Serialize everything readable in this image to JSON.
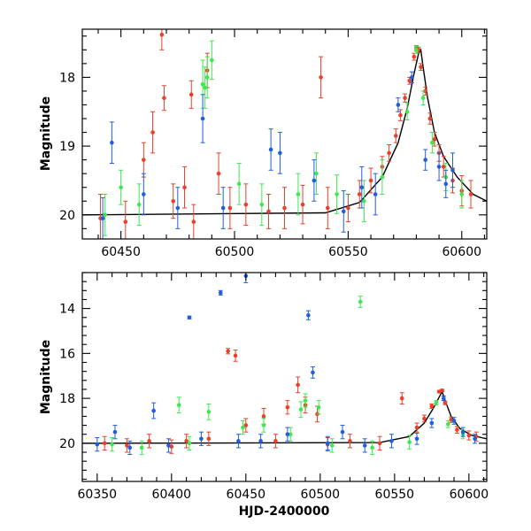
{
  "chart_data": [
    {
      "type": "scatter",
      "title": "",
      "ylabel": "Magnitude",
      "xlabel": "",
      "xlim": [
        60433,
        60611
      ],
      "ylim": [
        20.35,
        17.3
      ],
      "y_inverted": true,
      "xticks": [
        60450,
        60500,
        60550,
        60600
      ],
      "xtick_labels": [
        "60450",
        "60500",
        "60550",
        "60600"
      ],
      "yticks": [
        18,
        19,
        20
      ],
      "ytick_labels": [
        "18",
        "19",
        "20"
      ],
      "grid": false,
      "legend": "none",
      "series": [
        {
          "color": "#e8402a",
          "points": [
            [
              60441,
              20.05
            ],
            [
              60452,
              20.1
            ],
            [
              60460,
              19.2
            ],
            [
              60464,
              18.8
            ],
            [
              60468,
              17.38
            ],
            [
              60469,
              18.3
            ],
            [
              60473,
              19.8
            ],
            [
              60478,
              19.6
            ],
            [
              60481,
              18.25
            ],
            [
              60482,
              20.1
            ],
            [
              60488,
              17.9
            ],
            [
              60493,
              19.4
            ],
            [
              60498,
              19.9
            ],
            [
              60505,
              19.85
            ],
            [
              60515,
              19.95
            ],
            [
              60522,
              19.9
            ],
            [
              60530,
              19.85
            ],
            [
              60538,
              18.0
            ],
            [
              60541,
              19.9
            ],
            [
              60550,
              19.9
            ],
            [
              60555,
              19.7
            ],
            [
              60560,
              19.5
            ],
            [
              60565,
              19.3
            ],
            [
              60568,
              19.1
            ],
            [
              60571,
              18.85
            ],
            [
              60573,
              18.55
            ],
            [
              60575,
              18.3
            ],
            [
              60577,
              18.05
            ],
            [
              60579,
              17.7
            ],
            [
              60580,
              17.58
            ],
            [
              60581,
              17.6
            ],
            [
              60582,
              17.85
            ],
            [
              60584,
              18.2
            ],
            [
              60586,
              18.6
            ],
            [
              60588,
              18.9
            ],
            [
              60590,
              19.1
            ],
            [
              60592,
              19.3
            ],
            [
              60596,
              19.5
            ],
            [
              60600,
              19.65
            ],
            [
              60604,
              19.7
            ]
          ],
          "errors": [
            0.35,
            0.3,
            0.25,
            0.3,
            0.22,
            0.18,
            0.25,
            0.3,
            0.2,
            0.25,
            0.25,
            0.3,
            0.3,
            0.3,
            0.25,
            0.3,
            0.28,
            0.3,
            0.3,
            0.2,
            0.2,
            0.18,
            0.15,
            0.12,
            0.1,
            0.08,
            0.06,
            0.05,
            0.05,
            0.04,
            0.04,
            0.05,
            0.06,
            0.08,
            0.1,
            0.12,
            0.15,
            0.18,
            0.22,
            0.2
          ]
        },
        {
          "color": "#3ee84e",
          "points": [
            [
              60443,
              20.0
            ],
            [
              60450,
              19.6
            ],
            [
              60458,
              19.85
            ],
            [
              60486,
              18.1
            ],
            [
              60487,
              18.15
            ],
            [
              60488,
              18.0
            ],
            [
              60490,
              17.75
            ],
            [
              60502,
              19.55
            ],
            [
              60512,
              19.85
            ],
            [
              60528,
              19.7
            ],
            [
              60536,
              19.4
            ],
            [
              60545,
              19.7
            ],
            [
              60557,
              19.8
            ],
            [
              60565,
              19.45
            ],
            [
              60576,
              18.5
            ],
            [
              60580,
              17.6
            ],
            [
              60583,
              18.3
            ],
            [
              60587,
              18.95
            ],
            [
              60593,
              19.45
            ],
            [
              60600,
              19.7
            ]
          ],
          "errors": [
            0.3,
            0.25,
            0.3,
            0.35,
            0.3,
            0.3,
            0.28,
            0.3,
            0.3,
            0.3,
            0.3,
            0.28,
            0.3,
            0.25,
            0.12,
            0.05,
            0.1,
            0.15,
            0.2,
            0.2
          ]
        },
        {
          "color": "#1f5ee0",
          "points": [
            [
              60442,
              20.05
            ],
            [
              60446,
              18.95
            ],
            [
              60460,
              19.7
            ],
            [
              60475,
              19.9
            ],
            [
              60486,
              18.6
            ],
            [
              60495,
              19.9
            ],
            [
              60516,
              19.05
            ],
            [
              60520,
              19.1
            ],
            [
              60535,
              19.5
            ],
            [
              60548,
              19.95
            ],
            [
              60556,
              19.6
            ],
            [
              60562,
              19.7
            ],
            [
              60572,
              18.4
            ],
            [
              60578,
              18.0
            ],
            [
              60584,
              19.2
            ],
            [
              60590,
              19.3
            ],
            [
              60593,
              19.55
            ],
            [
              60596,
              19.35
            ]
          ],
          "errors": [
            0.3,
            0.3,
            0.3,
            0.3,
            0.35,
            0.3,
            0.3,
            0.3,
            0.3,
            0.3,
            0.3,
            0.3,
            0.1,
            0.08,
            0.15,
            0.2,
            0.2,
            0.25
          ]
        }
      ],
      "model_curve": [
        [
          60433,
          20.0
        ],
        [
          60540,
          19.97
        ],
        [
          60555,
          19.82
        ],
        [
          60565,
          19.45
        ],
        [
          60572,
          18.95
        ],
        [
          60576,
          18.45
        ],
        [
          60579,
          17.95
        ],
        [
          60581,
          17.65
        ],
        [
          60582,
          17.6
        ],
        [
          60583,
          17.85
        ],
        [
          60585,
          18.3
        ],
        [
          60588,
          18.8
        ],
        [
          60592,
          19.15
        ],
        [
          60598,
          19.45
        ],
        [
          60605,
          19.7
        ],
        [
          60611,
          19.8
        ]
      ]
    },
    {
      "type": "scatter",
      "title": "",
      "ylabel": "Magnitude",
      "xlabel": "HJD-2400000",
      "xlim": [
        60340,
        60612
      ],
      "ylim": [
        21.7,
        12.4
      ],
      "y_inverted": true,
      "xticks": [
        60350,
        60400,
        60450,
        60500,
        60550,
        60600
      ],
      "xtick_labels": [
        "60350",
        "60400",
        "60450",
        "60500",
        "60550",
        "60600"
      ],
      "yticks": [
        14,
        16,
        18,
        20
      ],
      "ytick_labels": [
        "14",
        "16",
        "18",
        "20"
      ],
      "grid": false,
      "legend": "none",
      "series": [
        {
          "color": "#e8402a",
          "points": [
            [
              60355,
              20.0
            ],
            [
              60370,
              20.1
            ],
            [
              60385,
              19.9
            ],
            [
              60400,
              20.15
            ],
            [
              60410,
              19.9
            ],
            [
              60425,
              19.8
            ],
            [
              60438,
              15.9
            ],
            [
              60443,
              16.1
            ],
            [
              60450,
              19.2
            ],
            [
              60462,
              18.8
            ],
            [
              60470,
              19.9
            ],
            [
              60478,
              18.4
            ],
            [
              60485,
              17.4
            ],
            [
              60490,
              18.3
            ],
            [
              60498,
              18.7
            ],
            [
              60505,
              20.05
            ],
            [
              60520,
              19.9
            ],
            [
              60540,
              20.0
            ],
            [
              60555,
              18.0
            ],
            [
              60565,
              19.3
            ],
            [
              60570,
              18.9
            ],
            [
              60575,
              18.35
            ],
            [
              60580,
              17.7
            ],
            [
              60582,
              17.65
            ],
            [
              60584,
              18.2
            ],
            [
              60588,
              18.95
            ],
            [
              60592,
              19.4
            ],
            [
              60600,
              19.65
            ],
            [
              60605,
              19.7
            ]
          ],
          "errors": [
            0.3,
            0.3,
            0.3,
            0.3,
            0.3,
            0.3,
            0.12,
            0.25,
            0.3,
            0.35,
            0.3,
            0.3,
            0.35,
            0.35,
            0.35,
            0.3,
            0.3,
            0.3,
            0.25,
            0.2,
            0.15,
            0.1,
            0.05,
            0.05,
            0.08,
            0.12,
            0.15,
            0.2,
            0.2
          ]
        },
        {
          "color": "#3ee84e",
          "points": [
            [
              60360,
              20.05
            ],
            [
              60380,
              20.2
            ],
            [
              60405,
              18.3
            ],
            [
              60412,
              20.0
            ],
            [
              60425,
              18.6
            ],
            [
              60448,
              19.3
            ],
            [
              60462,
              19.2
            ],
            [
              60480,
              19.6
            ],
            [
              60487,
              18.5
            ],
            [
              60490,
              18.1
            ],
            [
              60499,
              18.4
            ],
            [
              60508,
              20.1
            ],
            [
              60527,
              13.7
            ],
            [
              60535,
              20.2
            ],
            [
              60560,
              19.95
            ],
            [
              60578,
              18.2
            ],
            [
              60586,
              19.15
            ],
            [
              60596,
              19.6
            ]
          ],
          "errors": [
            0.3,
            0.3,
            0.35,
            0.3,
            0.35,
            0.3,
            0.3,
            0.3,
            0.35,
            0.3,
            0.3,
            0.3,
            0.25,
            0.3,
            0.3,
            0.1,
            0.15,
            0.2
          ]
        },
        {
          "color": "#1f5ee0",
          "points": [
            [
              60350,
              20.05
            ],
            [
              60362,
              19.5
            ],
            [
              60372,
              20.2
            ],
            [
              60388,
              18.55
            ],
            [
              60398,
              20.1
            ],
            [
              60412,
              14.4
            ],
            [
              60420,
              19.8
            ],
            [
              60433,
              13.3
            ],
            [
              60445,
              19.9
            ],
            [
              60450,
              12.55
            ],
            [
              60460,
              19.9
            ],
            [
              60478,
              19.6
            ],
            [
              60492,
              14.3
            ],
            [
              60495,
              16.85
            ],
            [
              60505,
              20.0
            ],
            [
              60515,
              19.5
            ],
            [
              60530,
              20.1
            ],
            [
              60548,
              19.9
            ],
            [
              60565,
              19.8
            ],
            [
              60575,
              19.1
            ],
            [
              60583,
              18.0
            ],
            [
              60590,
              19.0
            ],
            [
              60596,
              19.5
            ],
            [
              60604,
              19.8
            ]
          ],
          "errors": [
            0.3,
            0.3,
            0.3,
            0.35,
            0.3,
            0.06,
            0.3,
            0.1,
            0.3,
            0.3,
            0.3,
            0.3,
            0.2,
            0.25,
            0.3,
            0.3,
            0.3,
            0.3,
            0.25,
            0.2,
            0.1,
            0.15,
            0.2,
            0.2
          ]
        }
      ],
      "model_curve": [
        [
          60340,
          20.0
        ],
        [
          60540,
          19.97
        ],
        [
          60560,
          19.7
        ],
        [
          60570,
          19.1
        ],
        [
          60576,
          18.45
        ],
        [
          60580,
          17.95
        ],
        [
          60582,
          17.7
        ],
        [
          60584,
          18.1
        ],
        [
          60588,
          18.8
        ],
        [
          60594,
          19.35
        ],
        [
          60602,
          19.65
        ],
        [
          60612,
          19.8
        ]
      ]
    }
  ]
}
